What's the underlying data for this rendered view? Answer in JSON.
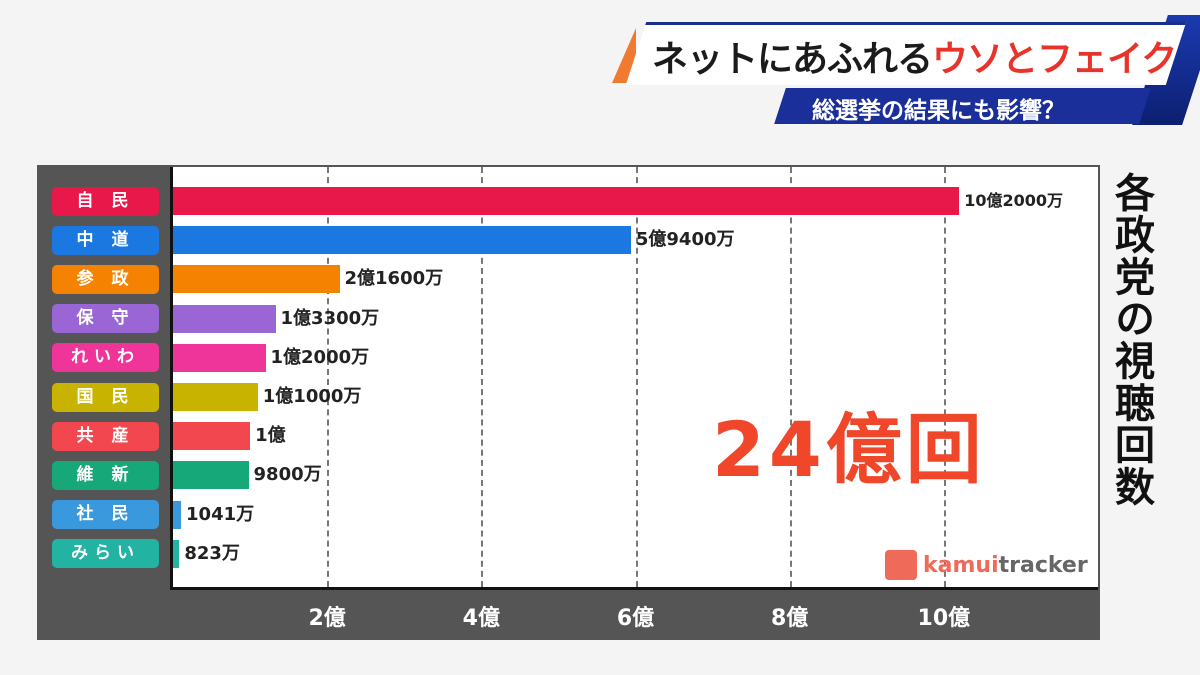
{
  "header": {
    "title_black": "ネットにあふれる",
    "title_red": "ウソとフェイク",
    "subtitle": "総選挙の結果にも影響？"
  },
  "chart_data": {
    "type": "bar",
    "orientation": "horizontal",
    "title": "各政党の視聴回数",
    "total_label": "24億回",
    "categories": [
      "自 民",
      "中 道",
      "参 政",
      "保 守",
      "れいわ",
      "国 民",
      "共 産",
      "維 新",
      "社 民",
      "みらい"
    ],
    "values": [
      10.2,
      5.94,
      2.16,
      1.33,
      1.2,
      1.1,
      1.0,
      0.98,
      0.1041,
      0.0823
    ],
    "value_unit": "億",
    "data_labels": [
      "10億2000万",
      "5億9400万",
      "2億1600万",
      "1億3300万",
      "1億2000万",
      "1億1000万",
      "1億",
      "9800万",
      "1041万",
      "823万"
    ],
    "colors": [
      "#e8194a",
      "#1a78e0",
      "#f58200",
      "#9a66d6",
      "#f0359a",
      "#c8b400",
      "#f2474f",
      "#16a878",
      "#3a98dc",
      "#22b3a3"
    ],
    "x_ticks": [
      2,
      4,
      6,
      8,
      10
    ],
    "x_tick_labels": [
      "2億",
      "4億",
      "6億",
      "8億",
      "10億"
    ],
    "xlim": [
      0,
      12
    ],
    "grid": "vertical dashed"
  },
  "logo": {
    "part1": "kamui",
    "part2": "tracker"
  }
}
